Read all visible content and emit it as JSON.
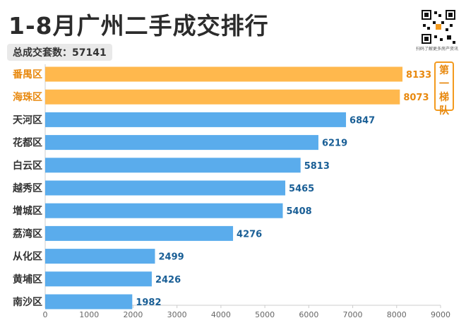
{
  "title": "1-8月广州二手成交排行",
  "total_label": "总成交套数：",
  "total_value": "57141",
  "qr_caption": "扫码了解更多房产资讯",
  "tier_badge": [
    "第",
    "一",
    "梯",
    "队"
  ],
  "colors": {
    "highlight": "#ffb84d",
    "highlight_text": "#e8890f",
    "normal": "#5aacec",
    "normal_text": "#1a5f96",
    "axis": "#cccccc"
  },
  "chart_data": {
    "type": "bar",
    "orientation": "horizontal",
    "categories": [
      "番禺区",
      "海珠区",
      "天河区",
      "花都区",
      "白云区",
      "越秀区",
      "增城区",
      "荔湾区",
      "从化区",
      "黄埔区",
      "南沙区"
    ],
    "values": [
      8133,
      8073,
      6847,
      6219,
      5813,
      5465,
      5408,
      4276,
      2499,
      2426,
      1982
    ],
    "highlighted": [
      true,
      true,
      false,
      false,
      false,
      false,
      false,
      false,
      false,
      false,
      false
    ],
    "xlim": [
      0,
      9000
    ],
    "xticks": [
      "0",
      "1000",
      "2000",
      "3000",
      "4000",
      "5000",
      "6000",
      "7000",
      "8000",
      "9000"
    ],
    "grid": false,
    "xlabel": "",
    "ylabel": ""
  }
}
